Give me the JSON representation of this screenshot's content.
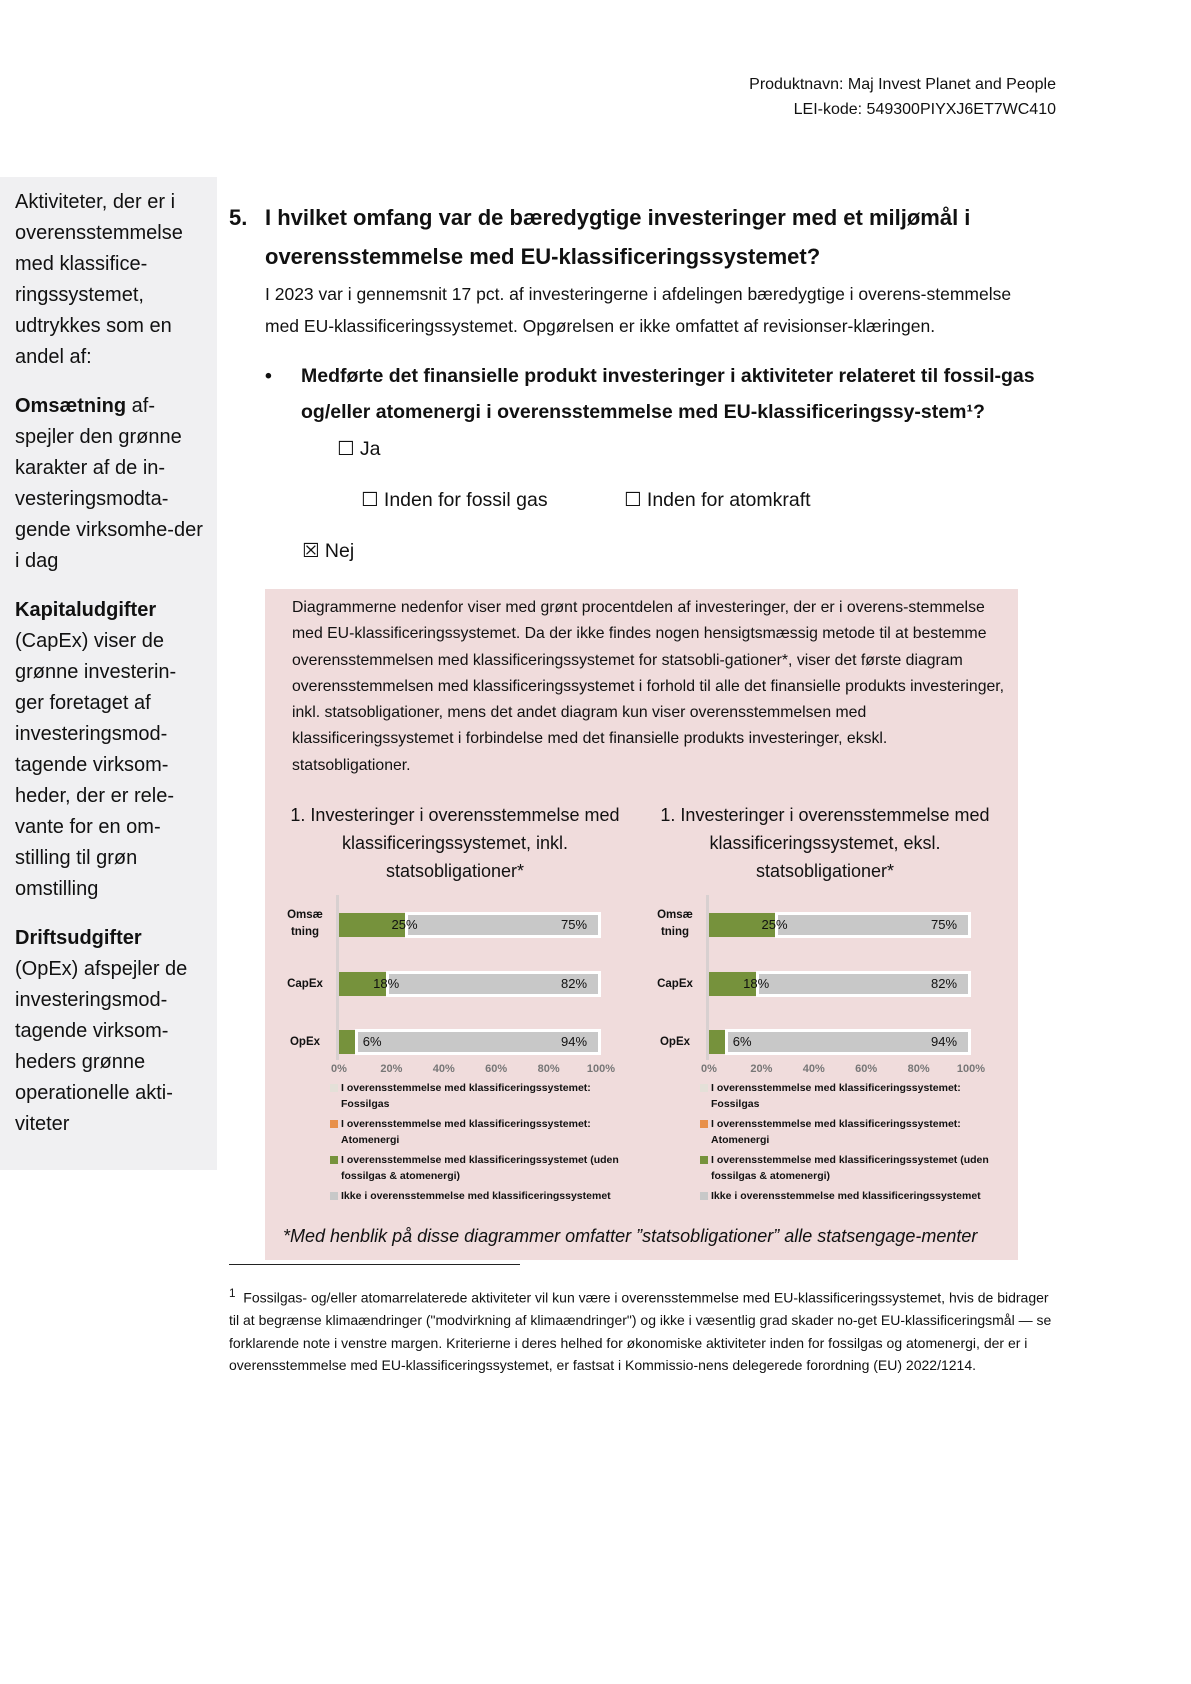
{
  "header": {
    "product": "Produktnavn: Maj Invest Planet and People",
    "lei": "LEI-kode: 549300PIYXJ6ET7WC410"
  },
  "sidebar": {
    "intro": "Aktiviteter, der er i overensstemmelse med klassifice-ringssystemet, udtrykkes som en andel af:",
    "items": [
      {
        "term": "Omsætning",
        "text": " af-spejler den grønne karakter af de in-vesteringsmodta-gende virksomhe-der i dag"
      },
      {
        "term": "Kapitaludgifter",
        "text": " (CapEx) viser de grønne investerin-ger foretaget af investeringsmod-tagende virksom-heder, der er rele-vante for en om-stilling til grøn omstilling"
      },
      {
        "term": "Driftsudgifter",
        "text": " (OpEx) afspejler de investeringsmod-tagende virksom-heders grønne operationelle akti-viteter"
      }
    ]
  },
  "question": {
    "number": "5.",
    "title": "I hvilket omfang var de bæredygtige investeringer med et miljømål i overensstemmelse med EU-klassificeringssystemet?",
    "intro": "I 2023 var i gennemsnit 17 pct. af investeringerne i afdelingen bæredygtige i overens-stemmelse med EU-klassificeringssystemet. Opgørelsen er ikke omfattet af revisionser-klæringen."
  },
  "bullet": {
    "marker": "•",
    "text": "Medførte det finansielle produkt investeringer i aktiviteter relateret til fossil-gas og/eller atomenergi i overensstemmelse med EU-klassificeringssy-stem¹?",
    "options": [
      {
        "box": "☐",
        "label": "Ja"
      },
      {
        "box": "☐",
        "label": "Inden for fossil gas"
      },
      {
        "box": "☐",
        "label": "Inden for atomkraft"
      },
      {
        "box": "☒",
        "label": "Nej"
      }
    ]
  },
  "box": {
    "text": "Diagrammerne nedenfor viser med grønt procentdelen af investeringer, der er i overens-stemmelse med EU-klassificeringssystemet. Da der ikke findes nogen hensigtsmæssig metode til at bestemme overensstemmelsen med klassificeringssystemet for statsobli-gationer*, viser det første diagram overensstemmelsen med klassificeringssystemet i forhold til alle det finansielle produkts investeringer, inkl. statsobligationer, mens det andet diagram kun viser overensstemmelsen med klassificeringssystemet i forbindelse med det finansielle produkts investeringer, ekskl. statsobligationer.",
    "note": "*Med henblik på disse diagrammer omfatter ”statsobligationer” alle statsengage-menter"
  },
  "colors": {
    "green": "#76923c",
    "grey": "#c8c8c8",
    "orange": "#e8904a",
    "fossil": "#e4e0d8",
    "box": "#f0dcdc",
    "sidebar": "#f0f0f2"
  },
  "chart_data": [
    {
      "type": "bar",
      "stacked": true,
      "orientation": "horizontal",
      "title": "1. Investeringer i overensstemmelse med klassificeringssystemet, inkl. statsobligationer*",
      "categories": [
        "Omsæ tning",
        "CapEx",
        "OpEx"
      ],
      "series": [
        {
          "name": "I overensstemmelse med klassificeringssystemet: Fossilgas",
          "values": [
            0,
            0,
            0
          ]
        },
        {
          "name": "I overensstemmelse med klassificeringssystemet: Atomenergi",
          "values": [
            0,
            0,
            0
          ]
        },
        {
          "name": "I overensstemmelse med klassificeringssystemet (uden fossilgas & atomenergi)",
          "values": [
            25,
            18,
            6
          ]
        },
        {
          "name": "Ikke i overensstemmelse med klassificeringssystemet",
          "values": [
            75,
            82,
            94
          ]
        }
      ],
      "data_labels": [
        [
          "25%",
          "75%"
        ],
        [
          "18%",
          "82%"
        ],
        [
          "6%",
          "94%"
        ]
      ],
      "xticks": [
        "0%",
        "20%",
        "40%",
        "60%",
        "80%",
        "100%"
      ],
      "xlim": [
        0,
        100
      ],
      "legend": "bottom"
    },
    {
      "type": "bar",
      "stacked": true,
      "orientation": "horizontal",
      "title": "1. Investeringer i overensstemmelse med klassificeringssystemet, eksl. statsobligationer*",
      "categories": [
        "Omsæ tning",
        "CapEx",
        "OpEx"
      ],
      "series": [
        {
          "name": "I overensstemmelse med klassificeringssystemet: Fossilgas",
          "values": [
            0,
            0,
            0
          ]
        },
        {
          "name": "I overensstemmelse med klassificeringssystemet: Atomenergi",
          "values": [
            0,
            0,
            0
          ]
        },
        {
          "name": "I overensstemmelse med klassificeringssystemet (uden fossilgas & atomenergi)",
          "values": [
            25,
            18,
            6
          ]
        },
        {
          "name": "Ikke i overensstemmelse med klassificeringssystemet",
          "values": [
            75,
            82,
            94
          ]
        }
      ],
      "data_labels": [
        [
          "25%",
          "75%"
        ],
        [
          "18%",
          "82%"
        ],
        [
          "6%",
          "94%"
        ]
      ],
      "xticks": [
        "0%",
        "20%",
        "40%",
        "60%",
        "80%",
        "100%"
      ],
      "xlim": [
        0,
        100
      ],
      "legend": "bottom"
    }
  ],
  "footnote": {
    "marker": "1",
    "text": "Fossilgas- og/eller atomarrelaterede aktiviteter vil kun være i overensstemmelse med EU-klassificeringssystemet, hvis de bidrager til at begrænse klimaændringer (\"modvirkning af klimaændringer\") og ikke i væsentlig grad skader no-get EU-klassificeringsmål — se forklarende note i venstre margen. Kriterierne i deres helhed for økonomiske aktiviteter inden for fossilgas og atomenergi, der er i overensstemmelse med EU-klassificeringssystemet, er fastsat i Kommissio-nens delegerede forordning (EU) 2022/1214."
  }
}
